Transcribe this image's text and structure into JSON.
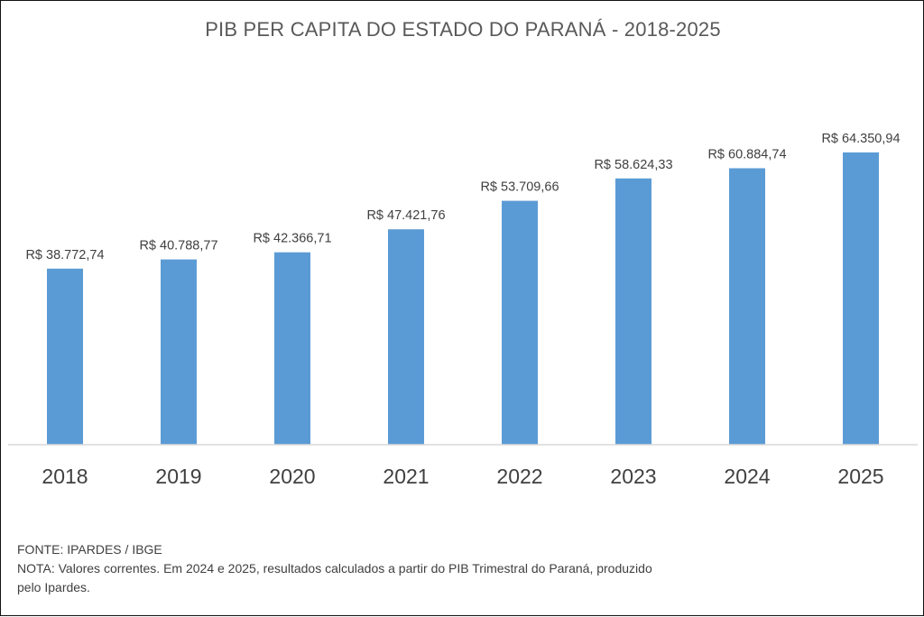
{
  "chart_data": {
    "type": "bar",
    "title": "PIB PER CAPITA DO ESTADO DO PARANÁ - 2018-2025",
    "xlabel": "",
    "ylabel": "",
    "categories": [
      "2018",
      "2019",
      "2020",
      "2021",
      "2022",
      "2023",
      "2024",
      "2025"
    ],
    "values": [
      38772.74,
      40788.77,
      42366.71,
      47421.76,
      53709.66,
      58624.33,
      60884.74,
      64350.94
    ],
    "data_labels": [
      "R$ 38.772,74",
      "R$ 40.788,77",
      "R$ 42.366,71",
      "R$ 47.421,76",
      "R$ 53.709,66",
      "R$ 58.624,33",
      "R$ 60.884,74",
      "R$ 64.350,94"
    ],
    "ylim": [
      0,
      64350.94
    ],
    "grid": false,
    "legend": "none",
    "bar_color": "#5B9BD5",
    "axis_color": "#D9D9D9"
  },
  "footer": {
    "source": "FONTE: IPARDES / IBGE",
    "note_line1": "NOTA: Valores correntes. Em 2024 e 2025, resultados calculados a partir do PIB Trimestral do Paraná, produzido",
    "note_line2": "pelo Ipardes."
  }
}
